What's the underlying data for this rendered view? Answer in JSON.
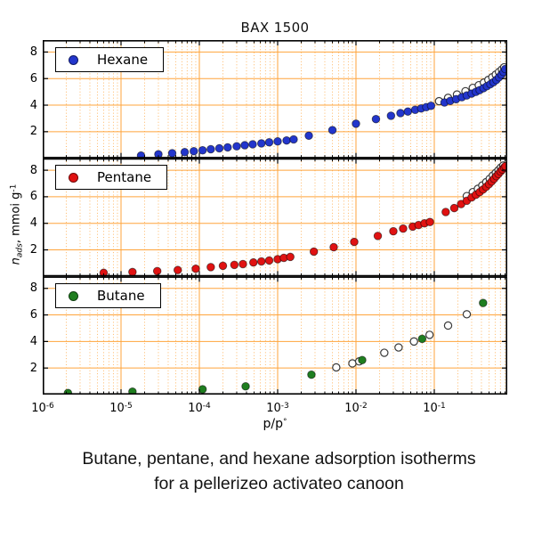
{
  "title": "BAX 1500",
  "xlabel": {
    "text": "p/p",
    "sup": "°"
  },
  "ylabel": {
    "pre": "n",
    "sub": "ads",
    "mid": ", mmoi g",
    "sup": "-1"
  },
  "caption": {
    "line1": "Butane, pentane, and hexane adsorption isotherms",
    "line2": "for a pellerizeo activateo canoon"
  },
  "style": {
    "grid_major": "#ffa43b",
    "grid_minor": "#ffb866",
    "frame": "#000000",
    "open_marker_fill": "#ffffff",
    "open_marker_edge": "#3a3a3a",
    "filled_marker_edge": "rgba(0,0,0,0.55)"
  },
  "axis": {
    "x_tick_exponents": [
      -6,
      -5,
      -4,
      -3,
      -2,
      -1
    ],
    "x_min": 1e-06,
    "x_max": 0.855,
    "y_max": 8.9
  },
  "chart_data": [
    {
      "type": "scatter",
      "gas": "hexane",
      "legend_label": "Hexane",
      "color": "#2336cc",
      "xscale": "log",
      "xlim": [
        1e-06,
        0.855
      ],
      "ylim": [
        0,
        8.9
      ],
      "yticks": [
        2,
        4,
        6,
        8
      ],
      "series": [
        {
          "name": "adsorption",
          "marker": "filled",
          "x": [
            1.8e-05,
            3e-05,
            4.5e-05,
            6.5e-05,
            8.5e-05,
            0.00011,
            0.00014,
            0.00018,
            0.00023,
            0.0003,
            0.00038,
            0.00048,
            0.00062,
            0.00078,
            0.001,
            0.0013,
            0.0016,
            0.0025,
            0.005,
            0.01,
            0.018,
            0.028,
            0.037,
            0.046,
            0.057,
            0.068,
            0.079,
            0.091,
            0.135,
            0.16,
            0.19,
            0.225,
            0.26,
            0.3,
            0.34,
            0.38,
            0.425,
            0.47,
            0.52,
            0.57,
            0.62,
            0.67,
            0.72,
            0.765,
            0.805
          ],
          "y": [
            0.2,
            0.3,
            0.38,
            0.46,
            0.53,
            0.6,
            0.68,
            0.75,
            0.82,
            0.9,
            0.98,
            1.05,
            1.12,
            1.2,
            1.27,
            1.34,
            1.42,
            1.7,
            2.12,
            2.6,
            2.95,
            3.2,
            3.4,
            3.52,
            3.65,
            3.75,
            3.85,
            3.95,
            4.2,
            4.32,
            4.45,
            4.6,
            4.73,
            4.87,
            5.0,
            5.13,
            5.28,
            5.43,
            5.58,
            5.73,
            5.9,
            6.1,
            6.3,
            6.5,
            6.72
          ]
        },
        {
          "name": "desorption",
          "marker": "open",
          "x": [
            0.115,
            0.15,
            0.195,
            0.25,
            0.31,
            0.37,
            0.43,
            0.49,
            0.55,
            0.61,
            0.67,
            0.73,
            0.78
          ],
          "y": [
            4.3,
            4.55,
            4.8,
            5.05,
            5.3,
            5.5,
            5.7,
            5.9,
            6.1,
            6.3,
            6.5,
            6.68,
            6.85
          ]
        }
      ]
    },
    {
      "type": "scatter",
      "gas": "pentane",
      "legend_label": "Pentane",
      "color": "#e01212",
      "xscale": "log",
      "xlim": [
        1e-06,
        0.855
      ],
      "ylim": [
        0,
        8.9
      ],
      "yticks": [
        2,
        4,
        6,
        8
      ],
      "series": [
        {
          "name": "adsorption",
          "marker": "filled",
          "x": [
            6e-06,
            1.4e-05,
            2.9e-05,
            5.3e-05,
            9e-05,
            0.00014,
            0.0002,
            0.00028,
            0.00036,
            0.00049,
            0.00062,
            0.00078,
            0.001,
            0.0012,
            0.00145,
            0.0029,
            0.0052,
            0.0095,
            0.019,
            0.03,
            0.04,
            0.053,
            0.063,
            0.075,
            0.088,
            0.14,
            0.18,
            0.22,
            0.26,
            0.3,
            0.34,
            0.38,
            0.42,
            0.46,
            0.5,
            0.54,
            0.58,
            0.62,
            0.66,
            0.7,
            0.74,
            0.78,
            0.81
          ],
          "y": [
            0.27,
            0.33,
            0.4,
            0.48,
            0.58,
            0.7,
            0.8,
            0.87,
            0.93,
            1.05,
            1.13,
            1.2,
            1.3,
            1.4,
            1.47,
            1.87,
            2.2,
            2.6,
            3.05,
            3.4,
            3.6,
            3.75,
            3.87,
            4.0,
            4.1,
            4.85,
            5.15,
            5.45,
            5.7,
            5.95,
            6.15,
            6.35,
            6.55,
            6.75,
            6.95,
            7.15,
            7.35,
            7.55,
            7.72,
            7.9,
            8.05,
            8.2,
            8.3
          ]
        },
        {
          "name": "desorption",
          "marker": "open",
          "x": [
            0.26,
            0.31,
            0.36,
            0.41,
            0.46,
            0.51,
            0.56,
            0.61,
            0.66,
            0.71,
            0.76
          ],
          "y": [
            6.05,
            6.35,
            6.6,
            6.85,
            7.1,
            7.35,
            7.6,
            7.8,
            8.0,
            8.2,
            8.35
          ]
        }
      ]
    },
    {
      "type": "scatter",
      "gas": "butane",
      "legend_label": "Butane",
      "color": "#1f7e1f",
      "xscale": "log",
      "xlim": [
        1e-06,
        0.855
      ],
      "ylim": [
        0,
        8.9
      ],
      "yticks": [
        2,
        4,
        6,
        8
      ],
      "series": [
        {
          "name": "adsorption",
          "marker": "filled",
          "x": [
            2.1e-06,
            1.4e-05,
            0.00011,
            0.00039,
            0.0027,
            0.012,
            0.07,
            0.42
          ],
          "y": [
            0.12,
            0.22,
            0.4,
            0.62,
            1.5,
            2.6,
            4.2,
            6.9
          ]
        },
        {
          "name": "desorption",
          "marker": "open",
          "x": [
            0.0056,
            0.009,
            0.011,
            0.023,
            0.035,
            0.055,
            0.087,
            0.15,
            0.26
          ],
          "y": [
            2.05,
            2.35,
            2.5,
            3.15,
            3.55,
            4.0,
            4.5,
            5.2,
            6.05
          ]
        }
      ]
    }
  ]
}
